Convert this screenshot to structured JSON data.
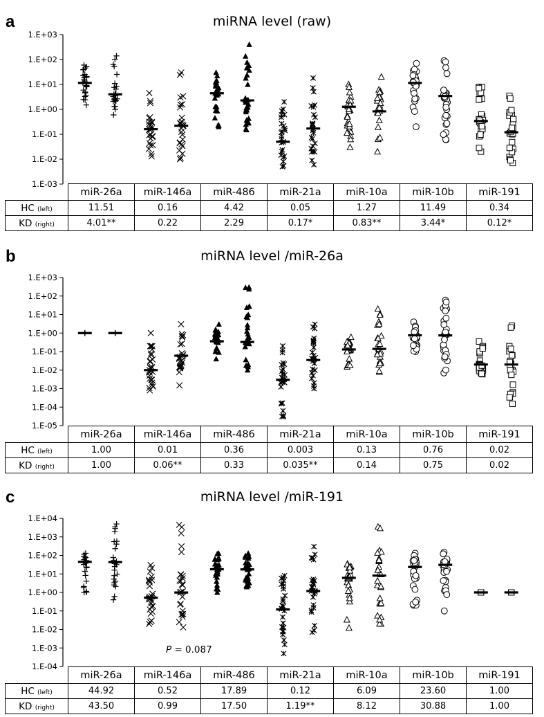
{
  "categories": [
    "miR-26a",
    "miR-146a",
    "miR-486",
    "miR-21a",
    "miR-10a",
    "miR-10b",
    "miR-191"
  ],
  "row_labels": {
    "hc": "HC",
    "hc_note": "(left)",
    "kd": "KD",
    "kd_note": "(right)"
  },
  "chart_data": [
    {
      "type": "scatter",
      "panel": "a",
      "title": "miRNA level (raw)",
      "xlabel": "",
      "ylabel": "",
      "yscale": "log",
      "ylim": [
        0.001,
        1000
      ],
      "yticks": [
        "1.E-03",
        "1.E-02",
        "1.E-01",
        "1.E+00",
        "1.E+01",
        "1.E+02",
        "1.E+03"
      ],
      "categories": [
        "miR-26a",
        "miR-146a",
        "miR-486",
        "miR-21a",
        "miR-10a",
        "miR-10b",
        "miR-191"
      ],
      "markers": [
        "plus",
        "x",
        "triangle-filled",
        "star-x",
        "triangle",
        "circle",
        "square"
      ],
      "hc": [
        "11.51",
        "0.16",
        "4.42",
        "0.05",
        "1.27",
        "11.49",
        "0.34"
      ],
      "kd": [
        "4.01**",
        "0.22",
        "2.29",
        "0.17*",
        "0.83**",
        "3.44*",
        "0.12*"
      ],
      "ranges": {
        "hc": [
          [
            1.5,
            60
          ],
          [
            0.013,
            4.5
          ],
          [
            0.2,
            30
          ],
          [
            0.005,
            2
          ],
          [
            0.03,
            10
          ],
          [
            0.2,
            70
          ],
          [
            0.02,
            8
          ]
        ],
        "kd": [
          [
            0.6,
            140
          ],
          [
            0.01,
            30
          ],
          [
            0.15,
            400
          ],
          [
            0.006,
            18
          ],
          [
            0.02,
            20
          ],
          [
            0.06,
            90
          ],
          [
            0.007,
            3.5
          ]
        ]
      },
      "annotations": []
    },
    {
      "type": "scatter",
      "panel": "b",
      "title": "miRNA level /miR-26a",
      "xlabel": "",
      "ylabel": "",
      "yscale": "log",
      "ylim": [
        1e-05,
        1000
      ],
      "yticks": [
        "1.E-05",
        "1.E-04",
        "1.E-03",
        "1.E-02",
        "1.E-01",
        "1.E+00",
        "1.E+01",
        "1.E+02",
        "1.E+03"
      ],
      "categories": [
        "miR-26a",
        "miR-146a",
        "miR-486",
        "miR-21a",
        "miR-10a",
        "miR-10b",
        "miR-191"
      ],
      "markers": [
        "plus",
        "x",
        "triangle-filled",
        "star-x",
        "triangle",
        "circle",
        "square"
      ],
      "hc": [
        "1.00",
        "0.01",
        "0.36",
        "0.003",
        "0.13",
        "0.76",
        "0.02"
      ],
      "kd": [
        "1.00",
        "0.06**",
        "0.33",
        "0.035**",
        "0.14",
        "0.75",
        "0.02"
      ],
      "ranges": {
        "hc": [
          [
            1,
            1
          ],
          [
            0.0008,
            1
          ],
          [
            0.04,
            3
          ],
          [
            3e-05,
            0.2
          ],
          [
            0.015,
            0.6
          ],
          [
            0.1,
            4
          ],
          [
            0.006,
            0.35
          ]
        ],
        "kd": [
          [
            1,
            1
          ],
          [
            0.0015,
            3
          ],
          [
            0.01,
            300
          ],
          [
            0.001,
            3
          ],
          [
            0.008,
            20
          ],
          [
            0.007,
            60
          ],
          [
            0.00015,
            2.5
          ]
        ]
      },
      "annotations": []
    },
    {
      "type": "scatter",
      "panel": "c",
      "title": "miRNA level /miR-191",
      "xlabel": "",
      "ylabel": "",
      "yscale": "log",
      "ylim": [
        0.0001,
        10000
      ],
      "yticks": [
        "1.E-04",
        "1.E-03",
        "1.E-02",
        "1.E-01",
        "1.E+00",
        "1.E+01",
        "1.E+02",
        "1.E+03",
        "1.E+04"
      ],
      "categories": [
        "miR-26a",
        "miR-146a",
        "miR-486",
        "miR-21a",
        "miR-10a",
        "miR-10b",
        "miR-191"
      ],
      "markers": [
        "plus",
        "x",
        "triangle-filled",
        "star-x",
        "triangle",
        "circle",
        "square"
      ],
      "hc": [
        "44.92",
        "0.52",
        "17.89",
        "0.12",
        "6.09",
        "23.60",
        "1.00"
      ],
      "kd": [
        "43.50",
        "0.99",
        "17.50",
        "1.19**",
        "8.12",
        "30.88",
        "1.00"
      ],
      "ranges": {
        "hc": [
          [
            1,
            130
          ],
          [
            0.02,
            30
          ],
          [
            1,
            130
          ],
          [
            0.0005,
            8
          ],
          [
            0.012,
            35
          ],
          [
            0.2,
            130
          ],
          [
            1,
            1
          ]
        ],
        "kd": [
          [
            0.4,
            5000
          ],
          [
            0.013,
            4500
          ],
          [
            2,
            130
          ],
          [
            0.007,
            300
          ],
          [
            0.02,
            3500
          ],
          [
            0.1,
            150
          ],
          [
            1,
            1
          ]
        ]
      },
      "annotations": [
        {
          "text_italic": "P",
          "text": " = 0.087"
        }
      ]
    }
  ]
}
